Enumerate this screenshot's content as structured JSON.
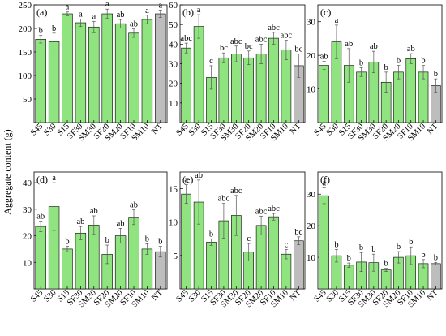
{
  "ylabel": "Aggregate content (g)",
  "chart_data": [
    {
      "type": "bar",
      "panel_label": "(a)",
      "categories": [
        "S45",
        "S30",
        "S15",
        "SF30",
        "SM30",
        "SF20",
        "SM20",
        "SF10",
        "SM10",
        "NT"
      ],
      "values": [
        177,
        172,
        231,
        212,
        203,
        231,
        210,
        190,
        219,
        231
      ],
      "errors": [
        8,
        18,
        4,
        8,
        12,
        10,
        9,
        9,
        9,
        8
      ],
      "letters": [
        "b",
        "b",
        "a",
        "a",
        "a",
        "a",
        "ab",
        "ab",
        "a",
        "a"
      ],
      "ylim": [
        0,
        250
      ],
      "yticks": [
        50,
        100,
        150,
        200,
        250
      ],
      "bar_colors": [
        "#8fe47f",
        "#8fe47f",
        "#8fe47f",
        "#8fe47f",
        "#8fe47f",
        "#8fe47f",
        "#8fe47f",
        "#8fe47f",
        "#8fe47f",
        "#bdbdbd"
      ]
    },
    {
      "type": "bar",
      "panel_label": "(b)",
      "categories": [
        "S45",
        "S30",
        "S15",
        "SF30",
        "SM30",
        "SF20",
        "SM20",
        "SF10",
        "SM10",
        "NT"
      ],
      "values": [
        38,
        49,
        23,
        33,
        35,
        33,
        35,
        43,
        37,
        29
      ],
      "errors": [
        2.5,
        6,
        6,
        2.5,
        4,
        3.5,
        5,
        3,
        5,
        6
      ],
      "letters": [
        "abc",
        "a",
        "c",
        "bc",
        "abc",
        "bc",
        "abc",
        "abc",
        "abc",
        "bc"
      ],
      "ylim": [
        0,
        60
      ],
      "yticks": [
        10,
        20,
        30,
        40,
        50,
        60
      ],
      "bar_colors": [
        "#8fe47f",
        "#8fe47f",
        "#8fe47f",
        "#8fe47f",
        "#8fe47f",
        "#8fe47f",
        "#8fe47f",
        "#8fe47f",
        "#8fe47f",
        "#bdbdbd"
      ]
    },
    {
      "type": "bar",
      "panel_label": "(c)",
      "categories": [
        "S45",
        "S30",
        "S15",
        "SF30",
        "SM30",
        "SF20",
        "SM20",
        "SF10",
        "SM10",
        "NT"
      ],
      "values": [
        17,
        24,
        17,
        15,
        18,
        12,
        15,
        19,
        15,
        11
      ],
      "errors": [
        1.2,
        5,
        5,
        1.3,
        3.2,
        3,
        2,
        1.5,
        2,
        2
      ],
      "letters": [
        "ab",
        "a",
        "ab",
        "b",
        "ab",
        "b",
        "b",
        "ab",
        "b",
        "b"
      ],
      "ylim": [
        0,
        35
      ],
      "yticks": [
        10,
        20,
        30
      ],
      "bar_colors": [
        "#8fe47f",
        "#8fe47f",
        "#8fe47f",
        "#8fe47f",
        "#8fe47f",
        "#8fe47f",
        "#8fe47f",
        "#8fe47f",
        "#8fe47f",
        "#bdbdbd"
      ]
    },
    {
      "type": "bar",
      "panel_label": "(d)",
      "categories": [
        "S45",
        "S30",
        "S15",
        "SF30",
        "SM30",
        "SF20",
        "SM20",
        "SF10",
        "SM10",
        "NT"
      ],
      "values": [
        23.5,
        31,
        15,
        21,
        24,
        13,
        20,
        27,
        15,
        14
      ],
      "errors": [
        2,
        9,
        1,
        2.5,
        3.5,
        3.5,
        2.8,
        2.8,
        2,
        2
      ],
      "letters": [
        "ab",
        "a",
        "b",
        "ab",
        "ab",
        "b",
        "ab",
        "ab",
        "b",
        "b"
      ],
      "ylim": [
        0,
        44
      ],
      "yticks": [
        10,
        20,
        30,
        40
      ],
      "bar_colors": [
        "#8fe47f",
        "#8fe47f",
        "#8fe47f",
        "#8fe47f",
        "#8fe47f",
        "#8fe47f",
        "#8fe47f",
        "#8fe47f",
        "#8fe47f",
        "#bdbdbd"
      ]
    },
    {
      "type": "bar",
      "panel_label": "(e)",
      "categories": [
        "S45",
        "S30",
        "S15",
        "SF30",
        "SM30",
        "SF20",
        "SM20",
        "SF10",
        "SM10",
        "NT"
      ],
      "values": [
        14.2,
        13,
        7,
        10.2,
        11,
        5.5,
        9.5,
        10.8,
        5.2,
        7.2
      ],
      "errors": [
        1.4,
        3.3,
        0.5,
        2.6,
        3,
        1.3,
        1.4,
        0.5,
        0.7,
        0.6
      ],
      "letters": [
        "a",
        "ab",
        "b",
        "abc",
        "abc",
        "c",
        "abc",
        "abc",
        "c",
        "bc"
      ],
      "ylim": [
        0,
        17.5
      ],
      "yticks": [
        5,
        10,
        15
      ],
      "bar_colors": [
        "#8fe47f",
        "#8fe47f",
        "#8fe47f",
        "#8fe47f",
        "#8fe47f",
        "#8fe47f",
        "#8fe47f",
        "#8fe47f",
        "#8fe47f",
        "#bdbdbd"
      ]
    },
    {
      "type": "bar",
      "panel_label": "(f)",
      "categories": [
        "S45",
        "S30",
        "S15",
        "SF30",
        "SM30",
        "SF20",
        "SM20",
        "SF10",
        "SM10",
        "NT"
      ],
      "values": [
        29.5,
        10.5,
        7.5,
        8.5,
        8.3,
        6,
        10,
        10.5,
        8,
        8
      ],
      "errors": [
        2.5,
        2,
        0.7,
        3,
        2.7,
        0.5,
        1.8,
        2.8,
        1.3,
        0.4
      ],
      "letters": [
        "a",
        "b",
        "b",
        "b",
        "b",
        "b",
        "b",
        "b",
        "b",
        "b"
      ],
      "ylim": [
        0,
        37
      ],
      "yticks": [
        10,
        20,
        30
      ],
      "bar_colors": [
        "#8fe47f",
        "#8fe47f",
        "#8fe47f",
        "#8fe47f",
        "#8fe47f",
        "#8fe47f",
        "#8fe47f",
        "#8fe47f",
        "#8fe47f",
        "#bdbdbd"
      ]
    }
  ]
}
